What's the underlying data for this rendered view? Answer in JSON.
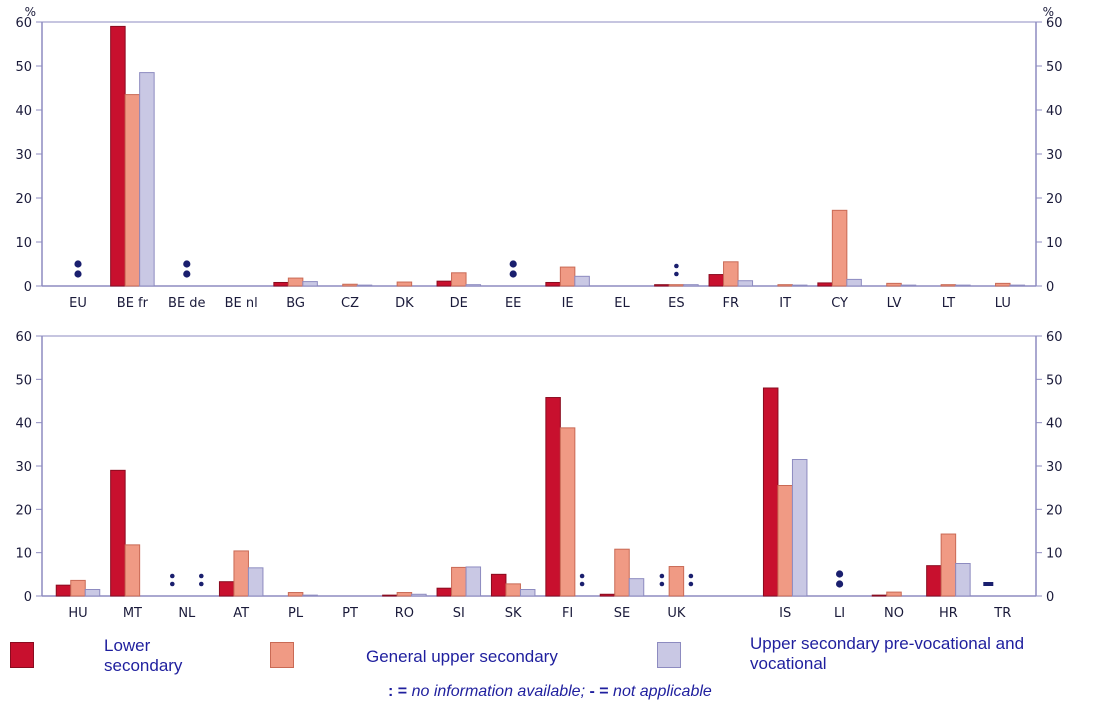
{
  "chart_data": [
    {
      "type": "bar",
      "ylabel": "%",
      "ylim": [
        0,
        60
      ],
      "yticks": [
        0,
        10,
        20,
        30,
        40,
        50,
        60
      ],
      "categories": [
        "EU",
        "BE fr",
        "BE de",
        "BE nl",
        "BG",
        "CZ",
        "DK",
        "DE",
        "EE",
        "IE",
        "EL",
        "ES",
        "FR",
        "IT",
        "CY",
        "LV",
        "LT",
        "LU"
      ],
      "series": [
        {
          "name": "Lower secondary",
          "values": [
            null,
            59,
            null,
            0,
            0.8,
            0,
            0,
            1.1,
            null,
            0.8,
            0,
            0.3,
            2.6,
            0,
            0.7,
            0,
            0,
            0
          ]
        },
        {
          "name": "General upper secondary",
          "values": [
            null,
            43.5,
            null,
            0,
            1.8,
            0.4,
            0.9,
            3,
            null,
            4.3,
            0,
            0.3,
            5.5,
            0.3,
            17.2,
            0.6,
            0.3,
            0.6
          ]
        },
        {
          "name": "Upper secondary pre-vocational and vocational",
          "values": [
            null,
            48.5,
            null,
            0,
            1,
            0.2,
            0,
            0.3,
            null,
            2.2,
            0,
            0.3,
            1.2,
            0.2,
            1.5,
            0.2,
            0.2,
            0.2
          ]
        }
      ],
      "markers": [
        {
          "category": "EU",
          "symbol": ":",
          "size": "large"
        },
        {
          "category": "BE de",
          "symbol": ":",
          "size": "large"
        },
        {
          "category": "EE",
          "symbol": ":",
          "size": "large"
        },
        {
          "category": "ES",
          "symbol": ":",
          "size": "small"
        }
      ]
    },
    {
      "type": "bar",
      "ylim": [
        0,
        60
      ],
      "yticks": [
        0,
        10,
        20,
        30,
        40,
        50,
        60
      ],
      "categories": [
        "HU",
        "MT",
        "NL",
        "AT",
        "PL",
        "PT",
        "RO",
        "SI",
        "SK",
        "FI",
        "SE",
        "UK",
        "",
        "IS",
        "LI",
        "NO",
        "HR",
        "TR"
      ],
      "series": [
        {
          "name": "Lower secondary",
          "values": [
            2.5,
            29,
            null,
            3.3,
            0,
            0,
            0.2,
            1.8,
            5,
            45.8,
            0.4,
            null,
            null,
            48,
            null,
            0.2,
            7,
            null
          ]
        },
        {
          "name": "General upper secondary",
          "values": [
            3.6,
            11.8,
            null,
            10.4,
            0.8,
            0,
            0.8,
            6.6,
            2.8,
            38.8,
            10.8,
            6.8,
            null,
            25.5,
            null,
            0.9,
            14.3,
            0
          ]
        },
        {
          "name": "Upper secondary pre-vocational and vocational",
          "values": [
            1.5,
            0,
            null,
            6.5,
            0.2,
            0,
            0.4,
            6.7,
            1.5,
            null,
            4,
            null,
            null,
            31.5,
            null,
            0,
            7.5,
            0
          ]
        }
      ],
      "markers": [
        {
          "category": "NL",
          "symbol": ":",
          "size": "small",
          "position": "lower"
        },
        {
          "category": "NL",
          "symbol": ":",
          "size": "small",
          "position": "vocational"
        },
        {
          "category": "FI",
          "symbol": ":",
          "size": "small",
          "position": "vocational"
        },
        {
          "category": "UK",
          "symbol": ":",
          "size": "small",
          "position": "lower"
        },
        {
          "category": "UK",
          "symbol": ":",
          "size": "small",
          "position": "vocational"
        },
        {
          "category": "LI",
          "symbol": ":",
          "size": "large"
        },
        {
          "category": "TR",
          "symbol": "-",
          "size": "large",
          "position": "lower"
        }
      ]
    }
  ],
  "colors": {
    "lower": "#c8102e",
    "lower_edge": "#8a0b1f",
    "general": "#f09a84",
    "general_edge": "#c96a55",
    "vocational": "#c9c8e4",
    "vocational_edge": "#8d8bc0",
    "axis": "#8d8bc0",
    "marker": "#1a1f6e",
    "text": "#1f1f9e"
  },
  "legend": {
    "lower_line1": "Lower",
    "lower_line2": "secondary",
    "general": "General upper secondary",
    "vocational_line1": "Upper secondary pre-vocational and",
    "vocational_line2": "vocational"
  },
  "footnote": {
    "colon": ":",
    "eq1": "=",
    "na_text": "no information available;",
    "dash": "-",
    "eq2": "=",
    "notapp_text": "not applicable"
  }
}
